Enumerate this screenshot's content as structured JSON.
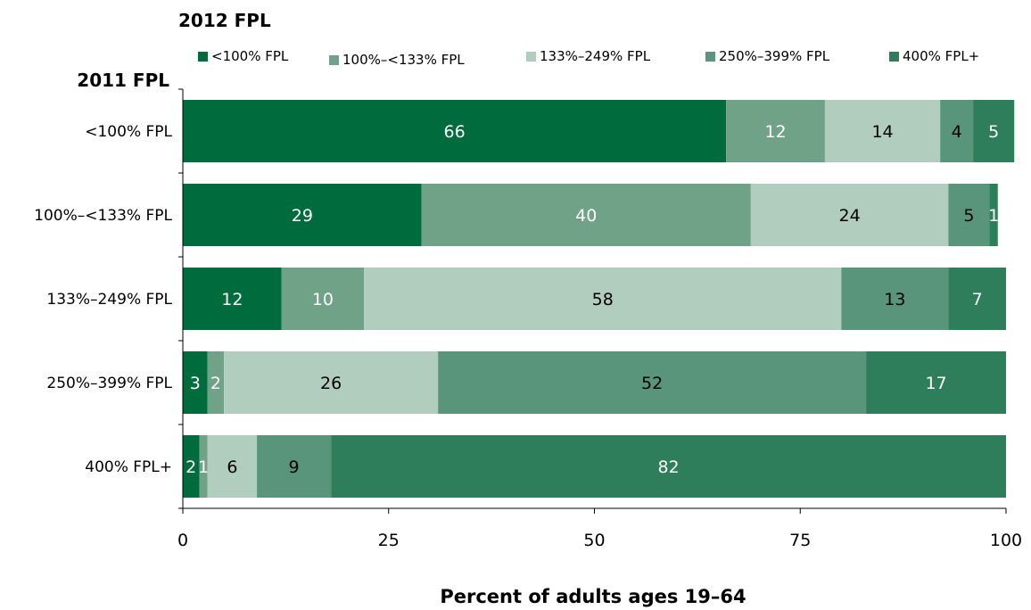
{
  "chart_data": {
    "type": "bar",
    "orientation": "horizontal",
    "stacked": true,
    "legend_title": "2012 FPL",
    "yaxis_title": "2011 FPL",
    "xlabel": "Percent of adults ages 19–64",
    "categories": [
      "<100% FPL",
      "100%–<133%  FPL",
      "133%–249% FPL",
      "250%–399% FPL",
      "400% FPL+"
    ],
    "series": [
      {
        "name": "<100% FPL",
        "color": "#006b3c",
        "label_color": "#ffffff",
        "values": [
          66,
          29,
          12,
          3,
          2
        ]
      },
      {
        "name": "100%–<133% FPL",
        "color": "#6fa287",
        "label_color": "#ffffff",
        "values": [
          12,
          40,
          10,
          2,
          1
        ]
      },
      {
        "name": "133%–249% FPL",
        "color": "#b1cdbd",
        "label_color": "#000000",
        "values": [
          14,
          24,
          58,
          26,
          6
        ]
      },
      {
        "name": "250%–399% FPL",
        "color": "#58957a",
        "label_color": "#000000",
        "values": [
          4,
          5,
          13,
          52,
          9
        ]
      },
      {
        "name": "400% FPL+",
        "color": "#2e7e5b",
        "label_color": "#ffffff",
        "values": [
          5,
          1,
          7,
          17,
          82
        ]
      }
    ],
    "xlim": [
      0,
      100
    ],
    "xticks": [
      0,
      25,
      50,
      75,
      100
    ],
    "xtick_labels": [
      "0",
      "25",
      "50",
      "75",
      "100"
    ],
    "grid": false,
    "legend_position": "top"
  }
}
